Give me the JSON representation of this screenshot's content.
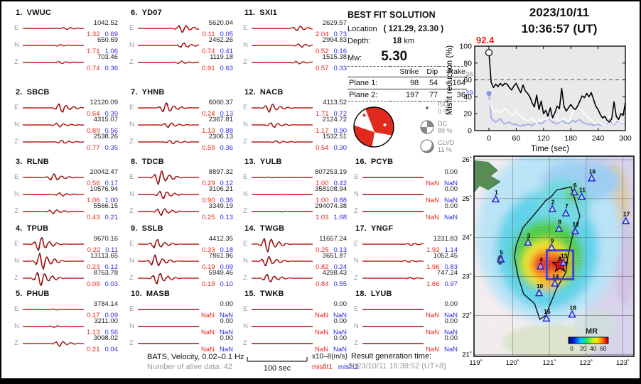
{
  "title_block": {
    "date": "2023/10/11",
    "time": "10:36:57  (UT)"
  },
  "best_fit": {
    "title": "BEST FIT SOLUTION",
    "location_label": "Location",
    "location_value": "( 121.29,  23.30 )",
    "depth_label": "Depth:",
    "depth_value": "18",
    "depth_unit": "km",
    "mw_label": "Mw:",
    "mw_value": "5.30",
    "table": {
      "headers": [
        "Strike",
        "Dip",
        "Rake"
      ],
      "rows": [
        {
          "label": "Plane 1:",
          "strike": "98",
          "dip": "54",
          "rake": "164"
        },
        {
          "label": "Plane 2:",
          "strike": "197",
          "dip": "77",
          "rake": "36"
        }
      ]
    },
    "decomposition": [
      {
        "name": "ISO",
        "pct": "0 %"
      },
      {
        "name": "DC",
        "pct": "89 %"
      },
      {
        "name": "CLVD",
        "pct": "11 %"
      }
    ]
  },
  "stations": [
    {
      "num": "1.",
      "code": "VWUC",
      "col": 0,
      "row": 0,
      "components": [
        {
          "comp": "E",
          "amp": "1042.52",
          "m1": "1.32",
          "m2": "0.69",
          "w": 0.14,
          "p": 0.72
        },
        {
          "comp": "N",
          "amp": "650.69",
          "m1": "1.71",
          "m2": "1.06",
          "w": 0.1,
          "p": 0.6
        },
        {
          "comp": "Z",
          "amp": "703.46",
          "m1": "0.74",
          "m2": "0.36",
          "w": 0.13,
          "p": 0.62
        }
      ]
    },
    {
      "num": "2.",
      "code": "SBCB",
      "col": 0,
      "row": 1,
      "components": [
        {
          "comp": "E",
          "amp": "12120.09",
          "m1": "0.64",
          "m2": "0.39",
          "w": 0.55,
          "p": 0.62
        },
        {
          "comp": "N",
          "amp": "4315.07",
          "m1": "0.89",
          "m2": "0.56",
          "w": 0.25,
          "p": 0.58
        },
        {
          "comp": "Z",
          "amp": "2538.26",
          "m1": "0.77",
          "m2": "0.35",
          "w": 0.2,
          "p": 0.64
        }
      ]
    },
    {
      "num": "3.",
      "code": "RLNB",
      "col": 0,
      "row": 2,
      "components": [
        {
          "comp": "E",
          "amp": "20042.47",
          "m1": "0.56",
          "m2": "0.17",
          "w": 0.42,
          "p": 0.5
        },
        {
          "comp": "N",
          "amp": "10576.94",
          "m1": "1.06",
          "m2": "1.00",
          "w": 0.2,
          "p": 0.62
        },
        {
          "comp": "Z",
          "amp": "5566.15",
          "m1": "0.43",
          "m2": "0.21",
          "w": 0.26,
          "p": 0.5
        }
      ]
    },
    {
      "num": "4.",
      "code": "TPUB",
      "col": 0,
      "row": 3,
      "components": [
        {
          "comp": "E",
          "amp": "9670.16",
          "m1": "0.22",
          "m2": "0.11",
          "w": 0.85,
          "p": 0.28
        },
        {
          "comp": "N",
          "amp": "13113.65",
          "m1": "0.23",
          "m2": "0.12",
          "w": 1.0,
          "p": 0.3
        },
        {
          "comp": "Z",
          "amp": "8763.78",
          "m1": "0.09",
          "m2": "0.03",
          "w": 0.9,
          "p": 0.28
        }
      ]
    },
    {
      "num": "5.",
      "code": "PHUB",
      "col": 0,
      "row": 4,
      "components": [
        {
          "comp": "E",
          "amp": "3784.14",
          "m1": "0.17",
          "m2": "0.09",
          "w": 0.06,
          "p": 0.5
        },
        {
          "comp": "N",
          "amp": "3211.00",
          "m1": "1.13",
          "m2": "0.56",
          "w": 0.1,
          "p": 0.52
        },
        {
          "comp": "Z",
          "amp": "3098.02",
          "m1": "0.21",
          "m2": "0.04",
          "w": 0.32,
          "p": 0.6
        }
      ]
    },
    {
      "num": "6.",
      "code": "YD07",
      "col": 1,
      "row": 0,
      "components": [
        {
          "comp": "E",
          "amp": "5620.04",
          "m1": "0.11",
          "m2": "0.05",
          "w": 0.48,
          "p": 0.72
        },
        {
          "comp": "N",
          "amp": "2462.26",
          "m1": "0.74",
          "m2": "0.41",
          "w": 0.3,
          "p": 0.74
        },
        {
          "comp": "Z",
          "amp": "1119.18",
          "m1": "0.91",
          "m2": "0.63",
          "w": 0.16,
          "p": 0.7
        }
      ]
    },
    {
      "num": "7.",
      "code": "YHNB",
      "col": 1,
      "row": 1,
      "components": [
        {
          "comp": "E",
          "amp": "6060.37",
          "m1": "0.24",
          "m2": "0.13",
          "w": 0.62,
          "p": 0.45
        },
        {
          "comp": "N",
          "amp": "2367.81",
          "m1": "1.13",
          "m2": "0.88",
          "w": 0.3,
          "p": 0.5
        },
        {
          "comp": "Z",
          "amp": "2306.13",
          "m1": "0.59",
          "m2": "0.36",
          "w": 0.22,
          "p": 0.55
        }
      ]
    },
    {
      "num": "8.",
      "code": "TDCB",
      "col": 1,
      "row": 2,
      "components": [
        {
          "comp": "E",
          "amp": "8897.32",
          "m1": "0.29",
          "m2": "0.12",
          "w": 0.85,
          "p": 0.35
        },
        {
          "comp": "N",
          "amp": "3106.21",
          "m1": "0.90",
          "m2": "0.36",
          "w": 0.5,
          "p": 0.4
        },
        {
          "comp": "Z",
          "amp": "3349.19",
          "m1": "0.25",
          "m2": "0.13",
          "w": 0.45,
          "p": 0.38
        }
      ]
    },
    {
      "num": "9.",
      "code": "SSLB",
      "col": 1,
      "row": 3,
      "components": [
        {
          "comp": "E",
          "amp": "4412.35",
          "m1": "0.33",
          "m2": "0.18",
          "w": 0.55,
          "p": 0.3
        },
        {
          "comp": "N",
          "amp": "7861.96",
          "m1": "0.19",
          "m2": "0.09",
          "w": 0.72,
          "p": 0.28
        },
        {
          "comp": "Z",
          "amp": "5949.46",
          "m1": "0.19",
          "m2": "0.10",
          "w": 0.7,
          "p": 0.32
        }
      ]
    },
    {
      "num": "10.",
      "code": "MASB",
      "col": 1,
      "row": 4,
      "components": [
        {
          "comp": "E",
          "amp": "0.00",
          "m1": "NaN",
          "m2": "NaN",
          "w": 0,
          "p": 0.5
        },
        {
          "comp": "N",
          "amp": "0.00",
          "m1": "NaN",
          "m2": "NaN",
          "w": 0,
          "p": 0.5
        },
        {
          "comp": "Z",
          "amp": "0.00",
          "m1": "NaN",
          "m2": "NaN",
          "w": 0,
          "p": 0.5
        }
      ]
    },
    {
      "num": "11.",
      "code": "SXI1",
      "col": 2,
      "row": 0,
      "components": [
        {
          "comp": "E",
          "amp": "2629.57",
          "m1": "2.04",
          "m2": "0.73",
          "w": 0.3,
          "p": 0.76
        },
        {
          "comp": "N",
          "amp": "2994.83",
          "m1": "0.52",
          "m2": "0.16",
          "w": 0.22,
          "p": 0.8
        },
        {
          "comp": "Z",
          "amp": "1515.38",
          "m1": "0.57",
          "m2": "0.33",
          "w": 0.16,
          "p": 0.76
        }
      ]
    },
    {
      "num": "12.",
      "code": "NACB",
      "col": 2,
      "row": 1,
      "components": [
        {
          "comp": "E",
          "amp": "4113.52",
          "m1": "1.71",
          "m2": "0.72",
          "w": 0.52,
          "p": 0.3
        },
        {
          "comp": "N",
          "amp": "2124.72",
          "m1": "1.17",
          "m2": "0.90",
          "w": 0.3,
          "p": 0.35
        },
        {
          "comp": "Z",
          "amp": "1532.51",
          "m1": "0.54",
          "m2": "0.30",
          "w": 0.15,
          "p": 0.42
        }
      ]
    },
    {
      "num": "13.",
      "code": "YULB",
      "col": 2,
      "row": 2,
      "components": [
        {
          "comp": "E",
          "amp": "807253.19",
          "m1": "1.00",
          "m2": "0.42",
          "w": 0.04,
          "p": 0.3
        },
        {
          "comp": "N",
          "amp": "358108.94",
          "m1": "1.00",
          "m2": "0.88",
          "w": 0.03,
          "p": 0.5
        },
        {
          "comp": "Z",
          "amp": "294074.38",
          "m1": "1.03",
          "m2": "1.68",
          "w": 0.04,
          "p": 0.5
        }
      ]
    },
    {
      "num": "14.",
      "code": "TWGB",
      "col": 2,
      "row": 3,
      "components": [
        {
          "comp": "E",
          "amp": "11657.24",
          "m1": "0.25",
          "m2": "0.13",
          "w": 0.9,
          "p": 0.25
        },
        {
          "comp": "N",
          "amp": "3651.87",
          "m1": "0.82",
          "m2": "0.24",
          "w": 0.6,
          "p": 0.25
        },
        {
          "comp": "Z",
          "amp": "4298.43",
          "m1": "0.84",
          "m2": "0.55",
          "w": 0.5,
          "p": 0.27
        }
      ]
    },
    {
      "num": "15.",
      "code": "TWKB",
      "col": 2,
      "row": 4,
      "components": [
        {
          "comp": "E",
          "amp": "0.00",
          "m1": "NaN",
          "m2": "NaN",
          "w": 0,
          "p": 0.5
        },
        {
          "comp": "N",
          "amp": "0.00",
          "m1": "NaN",
          "m2": "NaN",
          "w": 0,
          "p": 0.5
        },
        {
          "comp": "Z",
          "amp": "0.00",
          "m1": "NaN",
          "m2": "NaN",
          "w": 0,
          "p": 0.5
        }
      ]
    },
    {
      "num": "16.",
      "code": "PCYB",
      "col": 3,
      "row": 2,
      "components": [
        {
          "comp": "E",
          "amp": "0.00",
          "m1": "NaN",
          "m2": "NaN",
          "w": 0,
          "p": 0.5
        },
        {
          "comp": "N",
          "amp": "0.00",
          "m1": "NaN",
          "m2": "NaN",
          "w": 0,
          "p": 0.5
        },
        {
          "comp": "Z",
          "amp": "0.00",
          "m1": "NaN",
          "m2": "NaN",
          "w": 0,
          "p": 0.5
        }
      ]
    },
    {
      "num": "17.",
      "code": "YNGF",
      "col": 3,
      "row": 3,
      "components": [
        {
          "comp": "E",
          "amp": "1231.83",
          "m1": "1.92",
          "m2": "1.14",
          "w": 0.15,
          "p": 0.8
        },
        {
          "comp": "N",
          "amp": "1052.45",
          "m1": "1.96",
          "m2": "0.83",
          "w": 0.12,
          "p": 0.75
        },
        {
          "comp": "Z",
          "amp": "747.24",
          "m1": "1.66",
          "m2": "0.97",
          "w": 0.1,
          "p": 0.8
        }
      ]
    },
    {
      "num": "18.",
      "code": "LYUB",
      "col": 3,
      "row": 4,
      "components": [
        {
          "comp": "E",
          "amp": "0.00",
          "m1": "NaN",
          "m2": "NaN",
          "w": 0,
          "p": 0.5
        },
        {
          "comp": "N",
          "amp": "0.00",
          "m1": "NaN",
          "m2": "NaN",
          "w": 0,
          "p": 0.5
        },
        {
          "comp": "Z",
          "amp": "0.00",
          "m1": "NaN",
          "m2": "NaN",
          "w": 0,
          "p": 0.5
        }
      ]
    }
  ],
  "footer": {
    "line1": "BATS, Velocity, 0.02–0.1 Hz",
    "line2": "Number of alive data: 42",
    "scale_label": "100 sec",
    "unit_label": "x10–8(m/s)",
    "misfit1_label": "misfit1",
    "misfit2_label": "misfit2",
    "gen_label": "Result generation time:",
    "gen_value": "2023/10/11 18:38:52 (UT+8)"
  },
  "chart_data": [
    {
      "type": "line",
      "title": "2023/10/11 10:36:57 (UT)",
      "xlabel": "Time (sec)",
      "ylabel": "Misfit reduction (%)",
      "xlim": [
        0,
        300
      ],
      "ylim": [
        0,
        100
      ],
      "xticks": [
        0,
        60,
        120,
        180,
        240,
        300
      ],
      "yticks": [
        0,
        20,
        40,
        60,
        80,
        100
      ],
      "x_step": 5,
      "dashed_reference_y": 60,
      "annotations": {
        "best_value": "92.4",
        "white_start": "36",
        "blue_start": "39"
      },
      "series": [
        {
          "name": "best-solution-misfit",
          "color": "#000000",
          "values": [
            92.4,
            57,
            51,
            55,
            52,
            56,
            53,
            56,
            55,
            51,
            48,
            53,
            56,
            50,
            45,
            54,
            47,
            44,
            40,
            33,
            28,
            42,
            25,
            35,
            20,
            24,
            17,
            27,
            15,
            21,
            29,
            26,
            50,
            29,
            23,
            27,
            31,
            27,
            25,
            29,
            35,
            41,
            39,
            44,
            40,
            45,
            37,
            29,
            25,
            19,
            15,
            17,
            12,
            10,
            14,
            34,
            17,
            13,
            20,
            18,
            33
          ]
        },
        {
          "name": "reference-white",
          "color": "#ffffff",
          "values": [
            36,
            28,
            24,
            22,
            25,
            21,
            23,
            26,
            24,
            21,
            18,
            20,
            23,
            19,
            17,
            15,
            13,
            11,
            13,
            15,
            11,
            9,
            13,
            11,
            15,
            13,
            17,
            15,
            13,
            21,
            15,
            11,
            13,
            15,
            13,
            11,
            15,
            23,
            26,
            28,
            26,
            24,
            20,
            18,
            15,
            12,
            10,
            8,
            10,
            8,
            7,
            8,
            10,
            18,
            12,
            8,
            13,
            12,
            10,
            9,
            11
          ]
        },
        {
          "name": "reference-lavender",
          "color": "#a9b0ea",
          "values": [
            44,
            15,
            12,
            10,
            12,
            14,
            10,
            8,
            9,
            10,
            8,
            7,
            8,
            6,
            5,
            7,
            6,
            8,
            7,
            6,
            8,
            10,
            9,
            8,
            10,
            12,
            20,
            12,
            10,
            9,
            8,
            10,
            12,
            10,
            9,
            8,
            10,
            12,
            10,
            12,
            13,
            10,
            9,
            8,
            7,
            8,
            6,
            7,
            8,
            6,
            7,
            9,
            8,
            14,
            10,
            7,
            10,
            12,
            9,
            8,
            9
          ]
        }
      ]
    },
    {
      "type": "map",
      "lon_ticks": [
        "119˚",
        "120˚",
        "121˚",
        "122˚",
        "123˚"
      ],
      "lat_ticks": [
        "26˚",
        "25˚",
        "24˚",
        "23˚",
        "22˚",
        "21˚"
      ],
      "lon_range": [
        119,
        123
      ],
      "lat_range": [
        21,
        26
      ],
      "epicenter": {
        "lon": 121.29,
        "lat": 23.3
      },
      "colorbar": {
        "label": "MR",
        "ticks": [
          "0",
          "20",
          "40",
          "60"
        ]
      },
      "stations": [
        {
          "n": "1",
          "lon": 119.54,
          "lat": 24.98
        },
        {
          "n": "2",
          "lon": 121.08,
          "lat": 24.73
        },
        {
          "n": "3",
          "lon": 120.42,
          "lat": 23.87
        },
        {
          "n": "4",
          "lon": 120.76,
          "lat": 23.26
        },
        {
          "n": "5",
          "lon": 119.68,
          "lat": 23.44
        },
        {
          "n": "6",
          "lon": 121.68,
          "lat": 25.16
        },
        {
          "n": "7",
          "lon": 121.45,
          "lat": 24.62
        },
        {
          "n": "8",
          "lon": 121.26,
          "lat": 24.22
        },
        {
          "n": "9",
          "lon": 121.06,
          "lat": 23.74
        },
        {
          "n": "10",
          "lon": 120.72,
          "lat": 22.57
        },
        {
          "n": "11",
          "lon": 121.88,
          "lat": 25.04
        },
        {
          "n": "12",
          "lon": 121.7,
          "lat": 24.16
        },
        {
          "n": "13",
          "lon": 121.38,
          "lat": 23.35
        },
        {
          "n": "14",
          "lon": 121.15,
          "lat": 22.82
        },
        {
          "n": "15",
          "lon": 120.92,
          "lat": 21.92
        },
        {
          "n": "16",
          "lon": 122.15,
          "lat": 25.52
        },
        {
          "n": "17",
          "lon": 123.08,
          "lat": 24.42
        },
        {
          "n": "18",
          "lon": 121.62,
          "lat": 22.02
        }
      ]
    }
  ],
  "colors": {
    "misfit1": "#e8241f",
    "misfit2": "#2d2de0",
    "synthetic_trace": "#cc1111",
    "beachball_red": "#e02a1e",
    "station_triangle": "#1b1bd6"
  }
}
